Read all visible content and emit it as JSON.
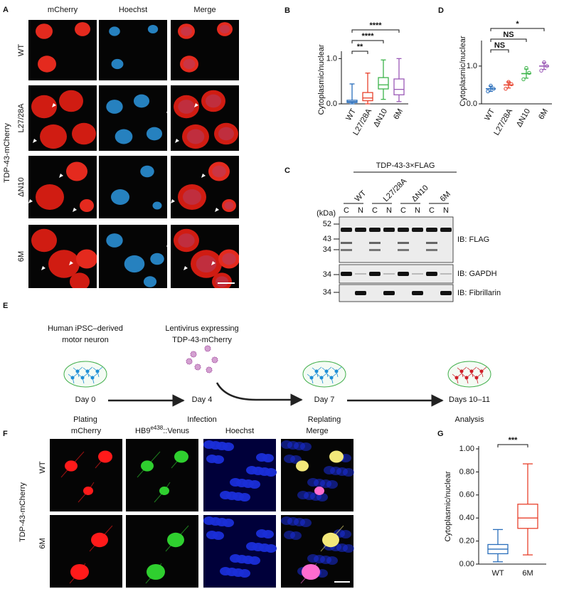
{
  "panel_a": {
    "letter": "A",
    "columns": [
      "mCherry",
      "Hoechst",
      "Merge"
    ],
    "rows": [
      "WT",
      "L27/28A",
      "ΔN10",
      "6M"
    ],
    "side_label": "TDP-43-mCherry"
  },
  "panel_c": {
    "letter": "C",
    "construct": "TDP-43-3×FLAG",
    "lanes": [
      "WT",
      "L27/28A",
      "ΔN10",
      "6M"
    ],
    "fractions": [
      "C",
      "N",
      "C",
      "N",
      "C",
      "N",
      "C",
      "N"
    ],
    "kda_unit": "(kDa)",
    "markers": [
      52,
      43,
      34,
      34,
      34
    ],
    "blots": [
      "IB: FLAG",
      "IB: GAPDH",
      "IB: Fibrillarin"
    ]
  },
  "panel_e": {
    "letter": "E",
    "steps": [
      {
        "above": [
          "Human iPSC–derived",
          "motor neuron"
        ],
        "day": "Day 0",
        "stage": "Plating"
      },
      {
        "above": [
          "Lentivirus expressing",
          "TDP-43-mCherry"
        ],
        "day": "Day 4",
        "stage": "Infection"
      },
      {
        "day": "Day 7",
        "stage": "Replating"
      },
      {
        "day": "Days 10–11",
        "stage": "Analysis"
      }
    ]
  },
  "panel_f": {
    "letter": "F",
    "columns": [
      "mCherry",
      "Hoechst",
      "Merge"
    ],
    "venus_header": {
      "base": "HB9",
      "sup": "e438",
      "suffix": "::Venus"
    },
    "rows": [
      "WT",
      "6M"
    ],
    "side_label": "TDP-43-mCherry"
  },
  "chart_data": [
    {
      "panel": "B",
      "type": "box",
      "y_label": "Cytoplasmic/nuclear",
      "categories": [
        "WT",
        "L27/28A",
        "ΔN10",
        "6M"
      ],
      "colors": [
        "#2a6ebb",
        "#e8412c",
        "#3cb44a",
        "#9b59b6"
      ],
      "min": [
        0.0,
        0.0,
        0.1,
        0.05
      ],
      "q1": [
        0.03,
        0.07,
        0.33,
        0.2
      ],
      "median": [
        0.05,
        0.13,
        0.42,
        0.32
      ],
      "q3": [
        0.08,
        0.25,
        0.58,
        0.55
      ],
      "max": [
        0.44,
        0.68,
        0.97,
        1.0
      ],
      "ylim": [
        0,
        1.1
      ],
      "yticks": [
        {
          "value": 0,
          "label": "0.0"
        },
        {
          "value": 1,
          "label": "1.0"
        }
      ],
      "significance": [
        "**",
        "****",
        "****"
      ]
    },
    {
      "panel": "D",
      "type": "dot",
      "y_label": "Cytoplasmic/nuclear",
      "categories": [
        "WT",
        "L27/28A",
        "ΔN10",
        "6M"
      ],
      "colors": [
        "#2a6ebb",
        "#e8412c",
        "#3cb44a",
        "#9b59b6"
      ],
      "values": [
        0.4,
        0.5,
        0.8,
        1.0
      ],
      "errors": [
        0.07,
        0.08,
        0.12,
        0.09
      ],
      "points": [
        [
          0.33,
          0.48,
          0.4
        ],
        [
          0.4,
          0.58,
          0.52
        ],
        [
          0.65,
          0.95,
          0.82
        ],
        [
          0.88,
          1.1,
          1.0
        ]
      ],
      "ylim": [
        0,
        1.6
      ],
      "yticks": [
        {
          "value": 0,
          "label": "0.0"
        },
        {
          "value": 1,
          "label": "1.0"
        }
      ],
      "significance": [
        "NS",
        "NS",
        "*"
      ]
    },
    {
      "panel": "G",
      "type": "box",
      "y_label": "Cytoplasmic/nuclear",
      "categories": [
        "WT",
        "6M"
      ],
      "colors": [
        "#2a6ebb",
        "#e8412c"
      ],
      "min": [
        0.02,
        0.08
      ],
      "q1": [
        0.09,
        0.31
      ],
      "median": [
        0.13,
        0.4
      ],
      "q3": [
        0.17,
        0.52
      ],
      "max": [
        0.3,
        0.87
      ],
      "ylim": [
        0,
        1.0
      ],
      "yticks": [
        {
          "value": 0,
          "label": "0.00"
        },
        {
          "value": 0.2,
          "label": "0.20"
        },
        {
          "value": 0.4,
          "label": "0.40"
        },
        {
          "value": 0.6,
          "label": "0.60"
        },
        {
          "value": 0.8,
          "label": "0.80"
        },
        {
          "value": 1.0,
          "label": "1.00"
        }
      ],
      "significance": [
        "***"
      ]
    }
  ]
}
